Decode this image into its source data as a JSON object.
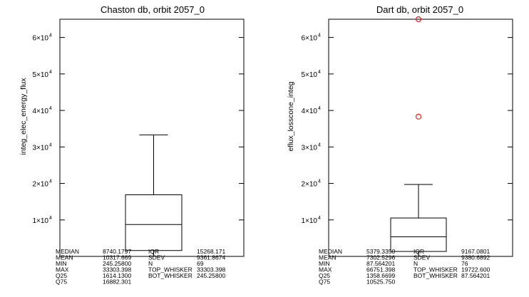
{
  "chart_data": [
    {
      "type": "box",
      "title": "Chaston db, orbit 2057_0",
      "xlabel": "",
      "ylabel": "integ_elec_energy_flux",
      "ylim": [
        0,
        65000
      ],
      "yticks": [
        {
          "value": 10000,
          "mant": "1×10",
          "exp": "4"
        },
        {
          "value": 20000,
          "mant": "2×10",
          "exp": "4"
        },
        {
          "value": 30000,
          "mant": "3×10",
          "exp": "4"
        },
        {
          "value": 40000,
          "mant": "4×10",
          "exp": "4"
        },
        {
          "value": 50000,
          "mant": "5×10",
          "exp": "4"
        },
        {
          "value": 60000,
          "mant": "6×10",
          "exp": "4"
        }
      ],
      "box": {
        "median": 8740.1797,
        "q25": 1614.13,
        "q75": 16882.301,
        "whisker_low": 245.258,
        "whisker_high": 33303.398
      },
      "outliers": [],
      "stats": [
        {
          "k1": "MEDIAN",
          "v1": "8740.1797",
          "k2": "IQR",
          "v2": "15268.171"
        },
        {
          "k1": "MEAN",
          "v1": "10317.669",
          "k2": "SDEV",
          "v2": "9361.8674"
        },
        {
          "k1": "MIN",
          "v1": "245.25800",
          "k2": "N",
          "v2": "69"
        },
        {
          "k1": "MAX",
          "v1": "33303.398",
          "k2": "TOP_WHISKER",
          "v2": "33303.398"
        },
        {
          "k1": "Q25",
          "v1": "1614.1300",
          "k2": "BOT_WHISKER",
          "v2": "245.25800"
        },
        {
          "k1": "Q75",
          "v1": "16882.301",
          "k2": "",
          "v2": ""
        }
      ],
      "grid": false,
      "colors": {
        "box": "#000000",
        "outlier": "#e8201c"
      }
    },
    {
      "type": "box",
      "title": "Dart db, orbit 2057_0",
      "xlabel": "",
      "ylabel": "eflux_losscone_integ",
      "ylim": [
        0,
        65000
      ],
      "yticks": [
        {
          "value": 10000,
          "mant": "1×10",
          "exp": "4"
        },
        {
          "value": 20000,
          "mant": "2×10",
          "exp": "4"
        },
        {
          "value": 30000,
          "mant": "3×10",
          "exp": "4"
        },
        {
          "value": 40000,
          "mant": "4×10",
          "exp": "4"
        },
        {
          "value": 50000,
          "mant": "5×10",
          "exp": "4"
        },
        {
          "value": 60000,
          "mant": "6×10",
          "exp": "4"
        }
      ],
      "box": {
        "median": 5379.335,
        "q25": 1358.6699,
        "q75": 10525.75,
        "whisker_low": 87.564201,
        "whisker_high": 19722.6
      },
      "outliers": [
        38300,
        65000
      ],
      "stats": [
        {
          "k1": "MEDIAN",
          "v1": "5379.3350",
          "k2": "IQR",
          "v2": "9167.0801"
        },
        {
          "k1": "MEAN",
          "v1": "7302.5296",
          "k2": "SDEV",
          "v2": "9380.6892"
        },
        {
          "k1": "MIN",
          "v1": "87.564201",
          "k2": "N",
          "v2": "76"
        },
        {
          "k1": "MAX",
          "v1": "66751.398",
          "k2": "TOP_WHISKER",
          "v2": "19722.600"
        },
        {
          "k1": "Q25",
          "v1": "1358.6699",
          "k2": "BOT_WHISKER",
          "v2": "87.564201"
        },
        {
          "k1": "Q75",
          "v1": "10525.750",
          "k2": "",
          "v2": ""
        }
      ],
      "grid": false,
      "colors": {
        "box": "#000000",
        "outlier": "#e8201c"
      }
    }
  ]
}
